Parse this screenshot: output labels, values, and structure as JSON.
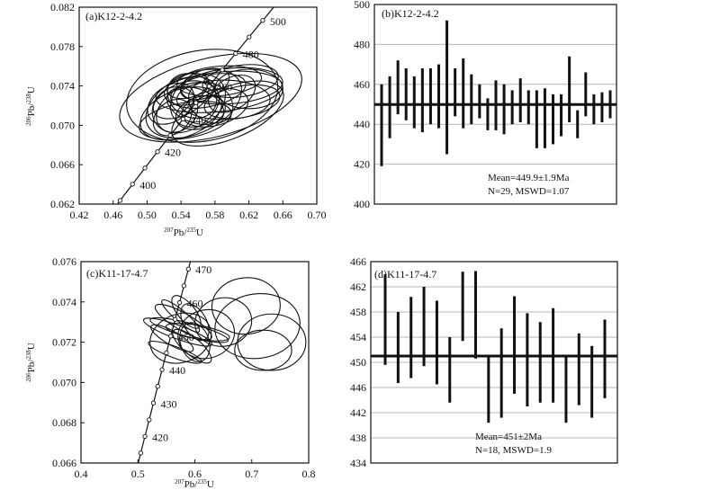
{
  "chart_data": [
    {
      "type": "scatter",
      "subtype": "concordia",
      "title": "(a)K12-2-4.2",
      "xlabel_pre": "207",
      "xlabel_el": "Pb/",
      "xlabel_sup2": "235",
      "xlabel_end": "U",
      "ylabel_pre": "206",
      "ylabel_el": "Pb/",
      "ylabel_sup2": "238",
      "ylabel_end": "U",
      "xlim": [
        0.42,
        0.7
      ],
      "ylim": [
        0.062,
        0.082
      ],
      "xticks": [
        "0.42",
        "0.46",
        "0.50",
        "0.54",
        "0.58",
        "0.62",
        "0.66",
        "0.70"
      ],
      "yticks": [
        "0.062",
        "0.066",
        "0.070",
        "0.074",
        "0.078",
        "0.082"
      ],
      "concordia_ages": [
        400,
        420,
        440,
        460,
        480,
        500
      ],
      "concordia_labels": [
        "400",
        "420",
        "440",
        "460",
        "480",
        "500"
      ],
      "ellipses": [
        {
          "cx": 0.565,
          "cy": 0.073,
          "rx": 0.09,
          "ry": 0.0046,
          "rot": 10
        },
        {
          "cx": 0.575,
          "cy": 0.0728,
          "rx": 0.11,
          "ry": 0.004,
          "rot": 14
        },
        {
          "cx": 0.555,
          "cy": 0.0722,
          "rx": 0.06,
          "ry": 0.003,
          "rot": 25
        },
        {
          "cx": 0.585,
          "cy": 0.0734,
          "rx": 0.075,
          "ry": 0.002,
          "rot": 6
        },
        {
          "cx": 0.548,
          "cy": 0.0718,
          "rx": 0.04,
          "ry": 0.0022,
          "rot": 30
        },
        {
          "cx": 0.6,
          "cy": 0.074,
          "rx": 0.06,
          "ry": 0.0018,
          "rot": 5
        },
        {
          "cx": 0.56,
          "cy": 0.0725,
          "rx": 0.035,
          "ry": 0.0024,
          "rot": 40
        },
        {
          "cx": 0.54,
          "cy": 0.0712,
          "rx": 0.05,
          "ry": 0.0024,
          "rot": 20
        },
        {
          "cx": 0.59,
          "cy": 0.0726,
          "rx": 0.055,
          "ry": 0.002,
          "rot": 0
        },
        {
          "cx": 0.572,
          "cy": 0.0735,
          "rx": 0.045,
          "ry": 0.0016,
          "rot": 12
        },
        {
          "cx": 0.533,
          "cy": 0.0716,
          "rx": 0.028,
          "ry": 0.0022,
          "rot": 45
        },
        {
          "cx": 0.61,
          "cy": 0.0745,
          "rx": 0.045,
          "ry": 0.0016,
          "rot": 8
        },
        {
          "cx": 0.553,
          "cy": 0.073,
          "rx": 0.025,
          "ry": 0.0026,
          "rot": 60
        },
        {
          "cx": 0.58,
          "cy": 0.0718,
          "rx": 0.04,
          "ry": 0.0018,
          "rot": 15
        },
        {
          "cx": 0.545,
          "cy": 0.0705,
          "rx": 0.055,
          "ry": 0.0018,
          "rot": 10
        },
        {
          "cx": 0.595,
          "cy": 0.0712,
          "rx": 0.07,
          "ry": 0.0026,
          "rot": 22
        },
        {
          "cx": 0.568,
          "cy": 0.0742,
          "rx": 0.03,
          "ry": 0.0014,
          "rot": 20
        },
        {
          "cx": 0.528,
          "cy": 0.0722,
          "rx": 0.03,
          "ry": 0.0018,
          "rot": 35
        },
        {
          "cx": 0.62,
          "cy": 0.0737,
          "rx": 0.04,
          "ry": 0.002,
          "rot": 0
        },
        {
          "cx": 0.557,
          "cy": 0.072,
          "rx": 0.02,
          "ry": 0.003,
          "rot": 70
        },
        {
          "cx": 0.575,
          "cy": 0.0723,
          "rx": 0.022,
          "ry": 0.0024,
          "rot": 55
        },
        {
          "cx": 0.54,
          "cy": 0.0726,
          "rx": 0.035,
          "ry": 0.0016,
          "rot": 25
        },
        {
          "cx": 0.585,
          "cy": 0.0745,
          "rx": 0.05,
          "ry": 0.0015,
          "rot": 5
        },
        {
          "cx": 0.6,
          "cy": 0.0732,
          "rx": 0.03,
          "ry": 0.0016,
          "rot": 30
        },
        {
          "cx": 0.55,
          "cy": 0.0735,
          "rx": 0.03,
          "ry": 0.0014,
          "rot": 10
        },
        {
          "cx": 0.563,
          "cy": 0.0713,
          "rx": 0.03,
          "ry": 0.0016,
          "rot": 18
        },
        {
          "cx": 0.53,
          "cy": 0.0708,
          "rx": 0.025,
          "ry": 0.0016,
          "rot": 40
        },
        {
          "cx": 0.612,
          "cy": 0.0724,
          "rx": 0.045,
          "ry": 0.0016,
          "rot": 10
        },
        {
          "cx": 0.548,
          "cy": 0.074,
          "rx": 0.025,
          "ry": 0.0012,
          "rot": 15
        }
      ]
    },
    {
      "type": "bar",
      "subtype": "weighted-mean",
      "title": "(b)K12-2-4.2",
      "ylim": [
        400,
        500
      ],
      "yticks": [
        "400",
        "420",
        "440",
        "460",
        "480",
        "500"
      ],
      "mean": 449.9,
      "mean_text": "Mean=449.9±1.9Ma",
      "stats_text": "N=29, MSWD=1.07",
      "bars": [
        [
          419,
          460
        ],
        [
          433,
          464
        ],
        [
          445,
          472
        ],
        [
          442,
          468
        ],
        [
          438,
          464
        ],
        [
          436,
          468
        ],
        [
          440,
          468
        ],
        [
          438,
          470
        ],
        [
          425,
          492
        ],
        [
          444,
          468
        ],
        [
          438,
          473
        ],
        [
          440,
          465
        ],
        [
          443,
          460
        ],
        [
          437,
          453
        ],
        [
          437,
          462
        ],
        [
          435,
          460
        ],
        [
          440,
          457
        ],
        [
          441,
          463
        ],
        [
          440,
          457
        ],
        [
          428,
          457
        ],
        [
          428,
          458
        ],
        [
          430,
          455
        ],
        [
          434,
          455
        ],
        [
          441,
          474
        ],
        [
          433,
          447
        ],
        [
          444,
          466
        ],
        [
          440,
          455
        ],
        [
          441,
          456
        ],
        [
          443,
          457
        ]
      ]
    },
    {
      "type": "scatter",
      "subtype": "concordia",
      "title": "(c)K11-17-4.7",
      "xlabel_pre": "207",
      "xlabel_el": "Pb/",
      "xlabel_sup2": "235",
      "xlabel_end": "U",
      "ylabel_pre": "206",
      "ylabel_el": "Pb/",
      "ylabel_sup2": "238",
      "ylabel_end": "U",
      "xlim": [
        0.4,
        0.8
      ],
      "ylim": [
        0.066,
        0.076
      ],
      "xticks": [
        "0.4",
        "0.5",
        "0.6",
        "0.7",
        "0.8"
      ],
      "yticks": [
        "0.066",
        "0.068",
        "0.070",
        "0.072",
        "0.074",
        "0.076"
      ],
      "concordia_ages": [
        420,
        430,
        440,
        450,
        460,
        470
      ],
      "concordia_labels": [
        "420",
        "430",
        "440",
        "450",
        "460",
        "470"
      ],
      "ellipses": [
        {
          "cx": 0.71,
          "cy": 0.0728,
          "rx": 0.075,
          "ry": 0.0016,
          "rot": 8
        },
        {
          "cx": 0.69,
          "cy": 0.0738,
          "rx": 0.06,
          "ry": 0.0014,
          "rot": 5
        },
        {
          "cx": 0.735,
          "cy": 0.072,
          "rx": 0.06,
          "ry": 0.0014,
          "rot": 0
        },
        {
          "cx": 0.72,
          "cy": 0.0716,
          "rx": 0.05,
          "ry": 0.001,
          "rot": 0
        },
        {
          "cx": 0.65,
          "cy": 0.073,
          "rx": 0.05,
          "ry": 0.0012,
          "rot": 10
        },
        {
          "cx": 0.62,
          "cy": 0.0724,
          "rx": 0.05,
          "ry": 0.0012,
          "rot": 15
        },
        {
          "cx": 0.575,
          "cy": 0.0722,
          "rx": 0.055,
          "ry": 0.0012,
          "rot": 20
        },
        {
          "cx": 0.58,
          "cy": 0.073,
          "rx": 0.015,
          "ry": 0.0016,
          "rot": 60
        },
        {
          "cx": 0.59,
          "cy": 0.0726,
          "rx": 0.012,
          "ry": 0.002,
          "rot": 75
        },
        {
          "cx": 0.57,
          "cy": 0.0725,
          "rx": 0.012,
          "ry": 0.0018,
          "rot": 70
        },
        {
          "cx": 0.6,
          "cy": 0.073,
          "rx": 0.02,
          "ry": 0.001,
          "rot": 30
        },
        {
          "cx": 0.6,
          "cy": 0.072,
          "rx": 0.025,
          "ry": 0.001,
          "rot": 20
        },
        {
          "cx": 0.565,
          "cy": 0.0715,
          "rx": 0.01,
          "ry": 0.0014,
          "rot": 70
        },
        {
          "cx": 0.585,
          "cy": 0.0735,
          "rx": 0.015,
          "ry": 0.001,
          "rot": 40
        },
        {
          "cx": 0.56,
          "cy": 0.0722,
          "rx": 0.012,
          "ry": 0.0012,
          "rot": 60
        },
        {
          "cx": 0.595,
          "cy": 0.0718,
          "rx": 0.015,
          "ry": 0.0012,
          "rot": 50
        },
        {
          "cx": 0.605,
          "cy": 0.0725,
          "rx": 0.012,
          "ry": 0.0016,
          "rot": 80
        },
        {
          "cx": 0.575,
          "cy": 0.0733,
          "rx": 0.01,
          "ry": 0.0012,
          "rot": 50
        }
      ]
    },
    {
      "type": "bar",
      "subtype": "weighted-mean",
      "title": "(d)K11-17-4.7",
      "ylim": [
        434,
        466
      ],
      "yticks": [
        "434",
        "438",
        "442",
        "446",
        "450",
        "454",
        "458",
        "462",
        "466"
      ],
      "mean": 451,
      "mean_text": "Mean=451±2Ma",
      "stats_text": "N=18, MSWD=1.9",
      "bars": [
        [
          449.6,
          464.0
        ],
        [
          446.7,
          458.0
        ],
        [
          447.5,
          460.4
        ],
        [
          449.4,
          462.0
        ],
        [
          446.5,
          459.8
        ],
        [
          443.6,
          454.0
        ],
        [
          453.4,
          464.4
        ],
        [
          450.6,
          464.5
        ],
        [
          440.4,
          451.0
        ],
        [
          441.2,
          455.4
        ],
        [
          445.0,
          460.5
        ],
        [
          443.0,
          457.8
        ],
        [
          443.6,
          456.4
        ],
        [
          443.6,
          458.6
        ],
        [
          440.4,
          451.0
        ],
        [
          443.2,
          454.6
        ],
        [
          441.2,
          452.6
        ],
        [
          444.3,
          456.8
        ]
      ]
    }
  ]
}
